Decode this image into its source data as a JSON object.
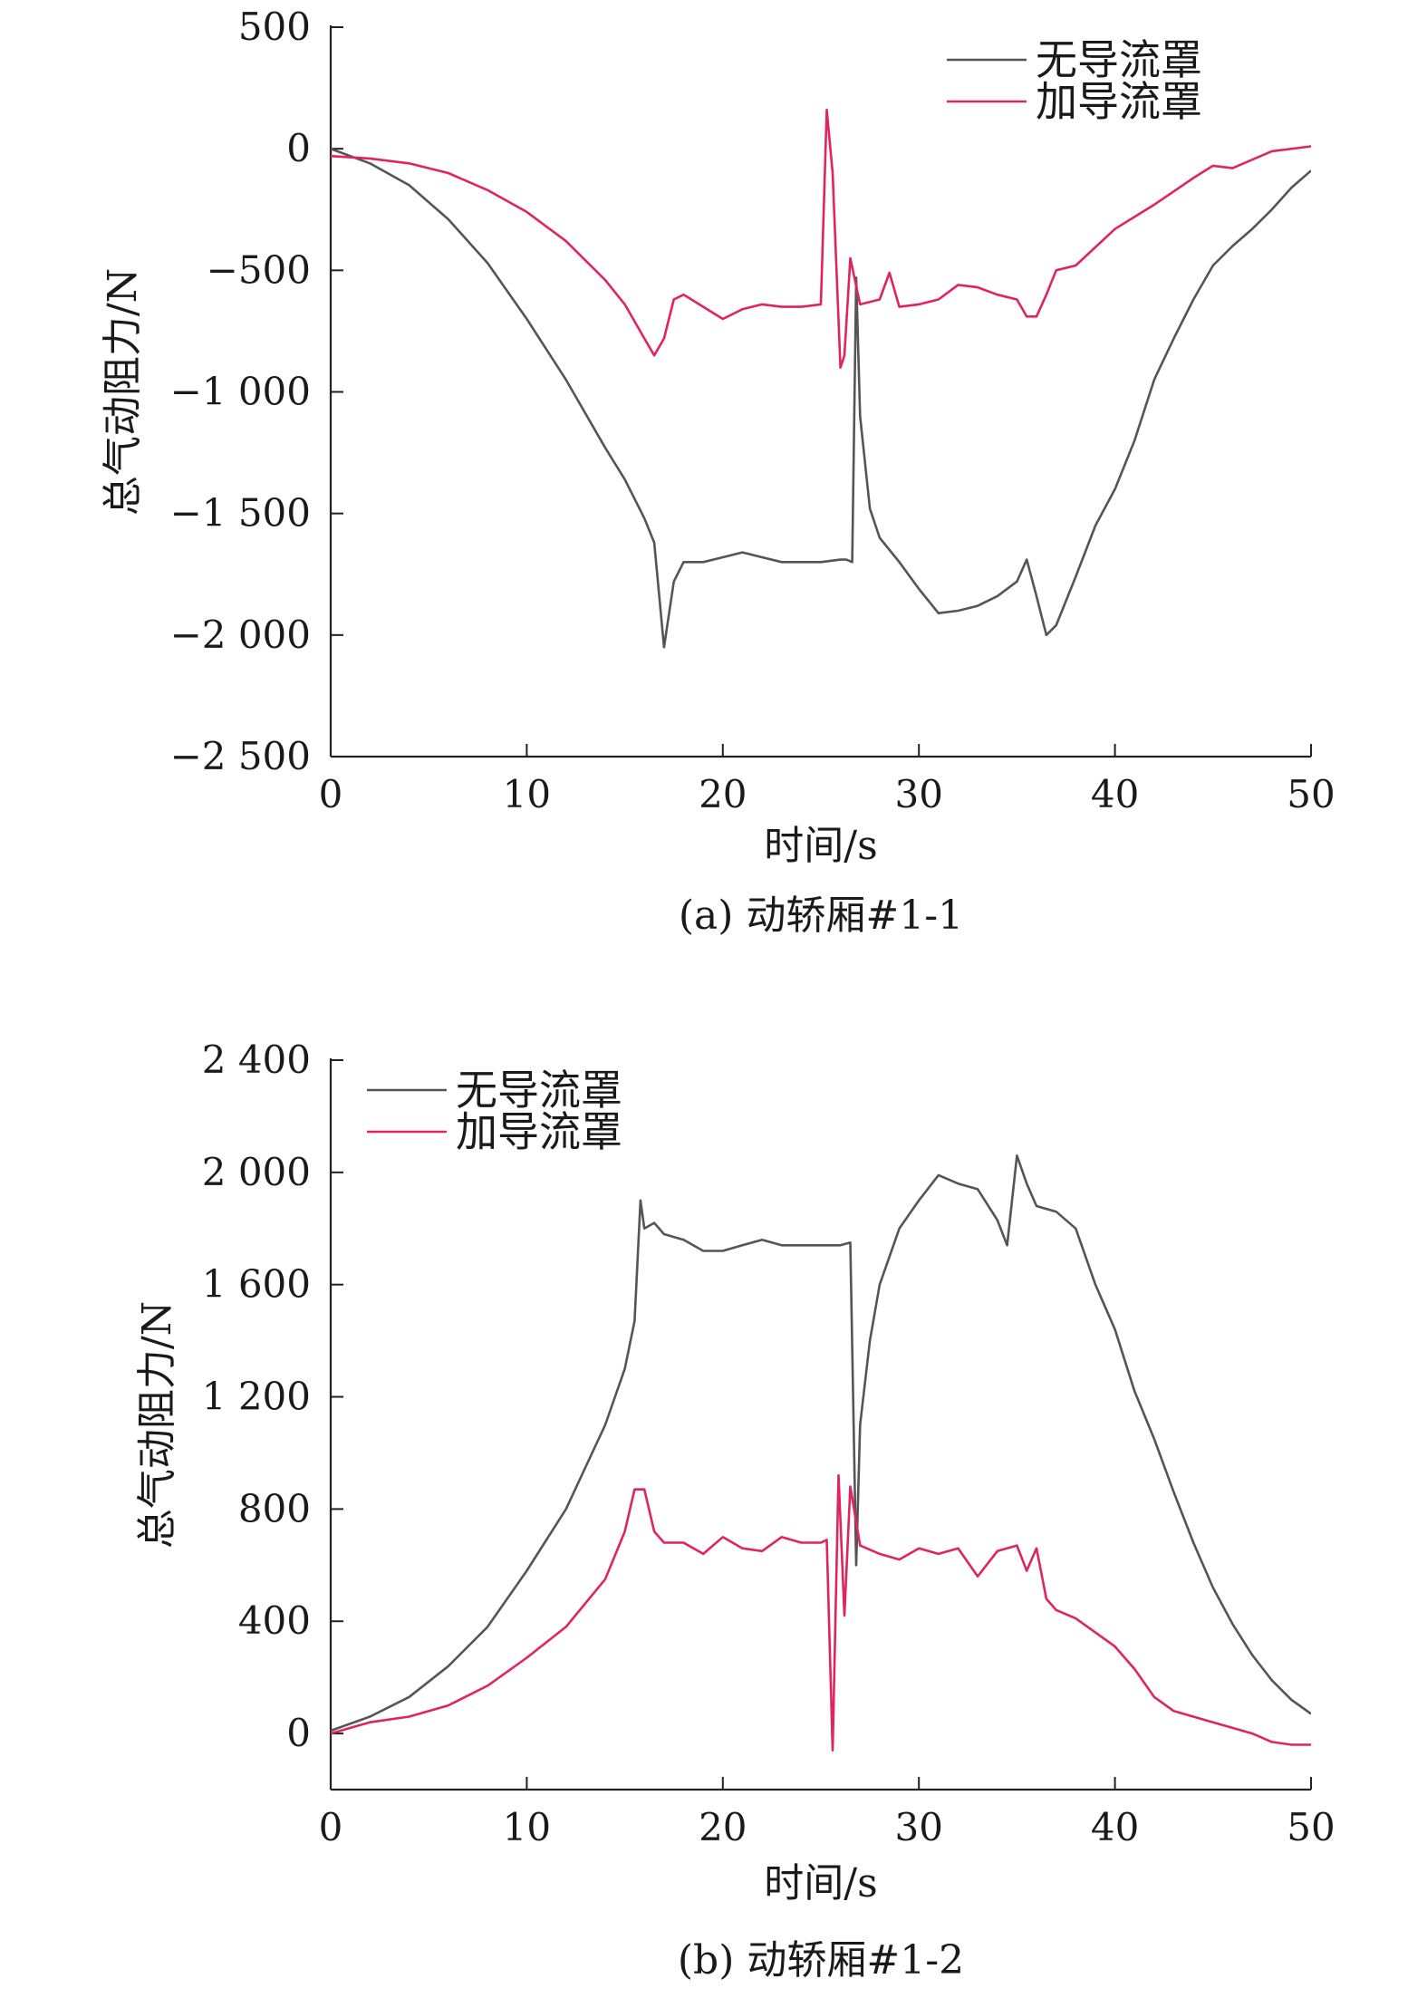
{
  "chart_data": [
    {
      "type": "line",
      "caption": "(a) 动轿厢#1-1",
      "xlabel": "时间/s",
      "ylabel": "总气动阻力/N",
      "xlim": [
        0,
        50
      ],
      "ylim": [
        -2500,
        500
      ],
      "xticks": [
        0,
        10,
        20,
        30,
        40,
        50
      ],
      "xtick_labels": [
        "0",
        "10",
        "20",
        "30",
        "40",
        "50"
      ],
      "yticks": [
        500,
        0,
        -500,
        -1000,
        -1500,
        -2000,
        -2500
      ],
      "ytick_labels": [
        "500",
        "0",
        "−500",
        "−1 000",
        "−1 500",
        "−2 000",
        "−2 500"
      ],
      "legend_position": "top-right",
      "grid": false,
      "series": [
        {
          "name": "无导流罩",
          "color": "#555555",
          "x": [
            0,
            2,
            4,
            6,
            8,
            10,
            12,
            14,
            15,
            16,
            16.5,
            17,
            17.5,
            18,
            19,
            20,
            21,
            22,
            23,
            24,
            25,
            26,
            26.3,
            26.6,
            26.8,
            27,
            27.5,
            28,
            29,
            30,
            31,
            32,
            33,
            34,
            35,
            35.5,
            36,
            36.5,
            37,
            38,
            39,
            40,
            41,
            42,
            43,
            44,
            45,
            46,
            47,
            48,
            49,
            50
          ],
          "y": [
            0,
            -60,
            -150,
            -290,
            -470,
            -700,
            -950,
            -1230,
            -1360,
            -1520,
            -1620,
            -2050,
            -1780,
            -1700,
            -1700,
            -1680,
            -1660,
            -1680,
            -1700,
            -1700,
            -1700,
            -1690,
            -1690,
            -1700,
            -530,
            -1100,
            -1480,
            -1600,
            -1700,
            -1810,
            -1910,
            -1900,
            -1880,
            -1840,
            -1780,
            -1690,
            -1840,
            -2000,
            -1960,
            -1760,
            -1550,
            -1400,
            -1200,
            -950,
            -780,
            -620,
            -480,
            -400,
            -330,
            -250,
            -160,
            -90
          ]
        },
        {
          "name": "加导流罩",
          "color": "#e0245e",
          "x": [
            0,
            2,
            4,
            6,
            8,
            10,
            12,
            14,
            15,
            16,
            16.5,
            17,
            17.5,
            18,
            19,
            20,
            21,
            22,
            23,
            24,
            25,
            25.3,
            25.6,
            26,
            26.2,
            26.5,
            27,
            28,
            28.5,
            29,
            30,
            31,
            32,
            33,
            34,
            35,
            35.5,
            36,
            36.5,
            37,
            38,
            40,
            42,
            44,
            45,
            46,
            48,
            50
          ],
          "y": [
            -30,
            -40,
            -60,
            -100,
            -170,
            -260,
            -380,
            -540,
            -640,
            -780,
            -850,
            -780,
            -620,
            -600,
            -650,
            -700,
            -660,
            -640,
            -650,
            -650,
            -640,
            160,
            -100,
            -900,
            -850,
            -450,
            -640,
            -620,
            -510,
            -650,
            -640,
            -620,
            -560,
            -570,
            -600,
            -620,
            -690,
            -690,
            -600,
            -500,
            -480,
            -330,
            -230,
            -120,
            -70,
            -80,
            -10,
            10
          ]
        }
      ]
    },
    {
      "type": "line",
      "caption": "(b) 动轿厢#1-2",
      "xlabel": "时间/s",
      "ylabel": "总气动阻力/N",
      "xlim": [
        0,
        50
      ],
      "ylim": [
        -200,
        2400
      ],
      "xticks": [
        0,
        10,
        20,
        30,
        40,
        50
      ],
      "xtick_labels": [
        "0",
        "10",
        "20",
        "30",
        "40",
        "50"
      ],
      "yticks": [
        2400,
        2000,
        1600,
        1200,
        800,
        400,
        0
      ],
      "ytick_labels": [
        "2 400",
        "2 000",
        "1 600",
        "1 200",
        "800",
        "400",
        "0"
      ],
      "legend_position": "top-left",
      "grid": false,
      "series": [
        {
          "name": "无导流罩",
          "color": "#555555",
          "x": [
            0,
            2,
            4,
            6,
            8,
            10,
            12,
            14,
            15,
            15.5,
            15.8,
            16,
            16.5,
            17,
            18,
            19,
            20,
            21,
            22,
            23,
            24,
            25,
            26,
            26.5,
            26.8,
            27,
            27.5,
            28,
            29,
            30,
            31,
            32,
            33,
            34,
            34.5,
            35,
            35.5,
            36,
            37,
            38,
            39,
            40,
            41,
            42,
            43,
            44,
            45,
            46,
            47,
            48,
            49,
            50
          ],
          "y": [
            10,
            60,
            130,
            240,
            380,
            580,
            800,
            1100,
            1300,
            1470,
            1900,
            1800,
            1820,
            1780,
            1760,
            1720,
            1720,
            1740,
            1760,
            1740,
            1740,
            1740,
            1740,
            1750,
            600,
            1100,
            1400,
            1600,
            1800,
            1900,
            1990,
            1960,
            1940,
            1830,
            1740,
            2060,
            1960,
            1880,
            1860,
            1800,
            1600,
            1440,
            1220,
            1050,
            860,
            680,
            520,
            390,
            280,
            190,
            120,
            70
          ]
        },
        {
          "name": "加导流罩",
          "color": "#e0245e",
          "x": [
            0,
            2,
            4,
            6,
            8,
            10,
            12,
            14,
            15,
            15.5,
            16,
            16.5,
            17,
            18,
            19,
            20,
            21,
            22,
            23,
            24,
            25,
            25.3,
            25.6,
            25.9,
            26.2,
            26.5,
            27,
            28,
            29,
            30,
            31,
            32,
            33,
            34,
            35,
            35.5,
            36,
            36.5,
            37,
            38,
            40,
            41,
            42,
            43,
            45,
            46,
            47,
            48,
            49,
            50
          ],
          "y": [
            0,
            40,
            60,
            100,
            170,
            270,
            380,
            550,
            720,
            870,
            870,
            720,
            680,
            680,
            640,
            700,
            660,
            650,
            700,
            680,
            680,
            690,
            -60,
            920,
            420,
            880,
            670,
            640,
            620,
            660,
            640,
            660,
            560,
            650,
            670,
            580,
            660,
            480,
            440,
            410,
            310,
            230,
            130,
            80,
            40,
            20,
            0,
            -30,
            -40,
            -40
          ]
        }
      ]
    }
  ]
}
